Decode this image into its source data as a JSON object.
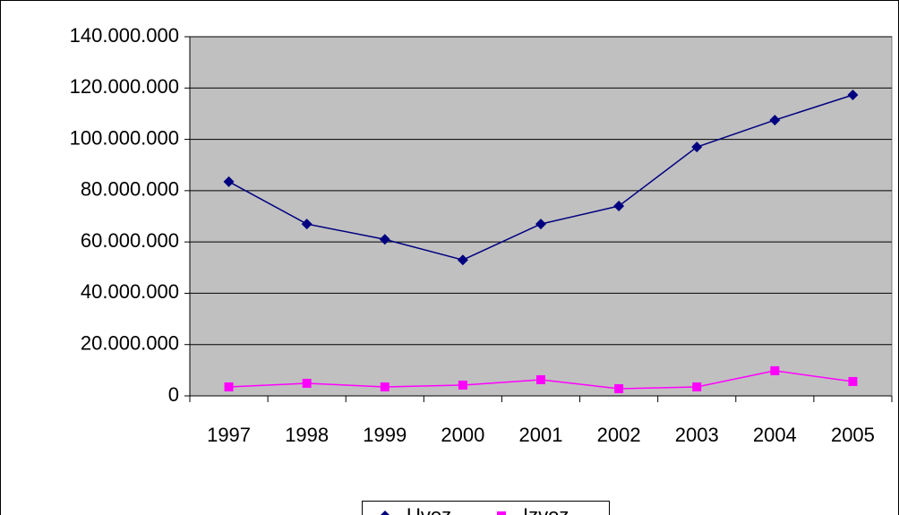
{
  "chart_data": {
    "type": "line",
    "categories": [
      "1997",
      "1998",
      "1999",
      "2000",
      "2001",
      "2002",
      "2003",
      "2004",
      "2005"
    ],
    "series": [
      {
        "name": "Uvoz",
        "color": "#000080",
        "marker": "diamond",
        "values": [
          83500000,
          67000000,
          61000000,
          53000000,
          67000000,
          74000000,
          97000000,
          107500000,
          117300000
        ]
      },
      {
        "name": "Izvoz",
        "color": "#ff00ff",
        "marker": "square",
        "values": [
          3500000,
          4900000,
          3500000,
          4200000,
          6300000,
          2800000,
          3500000,
          9800000,
          5600000
        ]
      }
    ],
    "ylim": [
      0,
      140000000
    ],
    "yticks": [
      0,
      {
        "value": 20000000,
        "label": "20.000.000"
      },
      {
        "value": 40000000,
        "label": "40.000.000"
      },
      {
        "value": 60000000,
        "label": "60.000.000"
      },
      {
        "value": 80000000,
        "label": "80.000.000"
      },
      {
        "value": 100000000,
        "label": "100.000.000"
      },
      {
        "value": 120000000,
        "label": "120.000.000"
      },
      {
        "value": 140000000,
        "label": "140.000.000"
      }
    ],
    "grid": true,
    "plot_background": "#c0c0c0",
    "legend": "bottom"
  }
}
